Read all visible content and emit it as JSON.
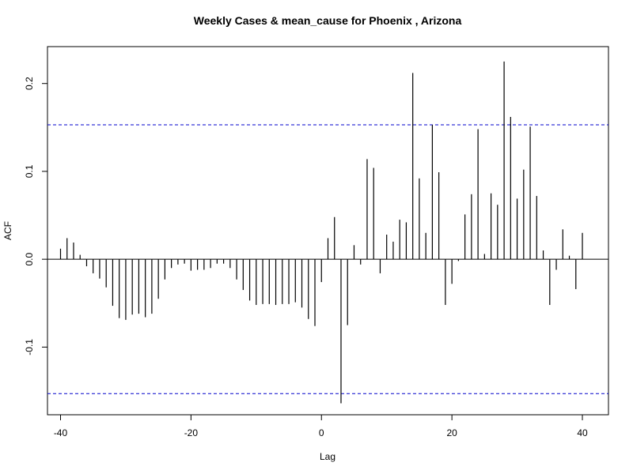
{
  "chart_data": {
    "type": "bar",
    "title": "Weekly Cases & mean_cause for Phoenix , Arizona",
    "xlabel": "Lag",
    "ylabel": "ACF",
    "xlim": [
      -42,
      44
    ],
    "ylim": [
      -0.177,
      0.242
    ],
    "x_ticks": [
      "-40",
      "-20",
      "0",
      "20",
      "40"
    ],
    "y_ticks": [
      "-0.1",
      "0.0",
      "0.1",
      "0.2"
    ],
    "confidence_limit": 0.153,
    "colors": {
      "bars": "#000000",
      "confidence_lines": "#0000cc",
      "zero_line": "#000000"
    },
    "lags": [
      -40,
      -39,
      -38,
      -37,
      -36,
      -35,
      -34,
      -33,
      -32,
      -31,
      -30,
      -29,
      -28,
      -27,
      -26,
      -25,
      -24,
      -23,
      -22,
      -21,
      -20,
      -19,
      -18,
      -17,
      -16,
      -15,
      -14,
      -13,
      -12,
      -11,
      -10,
      -9,
      -8,
      -7,
      -6,
      -5,
      -4,
      -3,
      -2,
      -1,
      0,
      1,
      2,
      3,
      4,
      5,
      6,
      7,
      8,
      9,
      10,
      11,
      12,
      13,
      14,
      15,
      16,
      17,
      18,
      19,
      20,
      21,
      22,
      23,
      24,
      25,
      26,
      27,
      28,
      29,
      30,
      31,
      32,
      33,
      34,
      35,
      36,
      37,
      38,
      39,
      40
    ],
    "values": [
      0.012,
      0.024,
      0.019,
      0.005,
      -0.008,
      -0.016,
      -0.022,
      -0.032,
      -0.053,
      -0.067,
      -0.069,
      -0.063,
      -0.062,
      -0.066,
      -0.062,
      -0.045,
      -0.023,
      -0.01,
      -0.006,
      -0.005,
      -0.013,
      -0.012,
      -0.012,
      -0.01,
      -0.005,
      -0.005,
      -0.01,
      -0.023,
      -0.035,
      -0.047,
      -0.052,
      -0.051,
      -0.051,
      -0.052,
      -0.051,
      -0.051,
      -0.049,
      -0.055,
      -0.068,
      -0.076,
      -0.026,
      0.024,
      0.048,
      -0.164,
      -0.075,
      0.016,
      -0.006,
      0.114,
      0.104,
      -0.016,
      0.028,
      0.02,
      0.045,
      0.042,
      0.212,
      0.092,
      0.03,
      0.153,
      0.099,
      -0.052,
      -0.028,
      -0.002,
      0.051,
      0.074,
      0.148,
      0.006,
      0.075,
      0.062,
      0.225,
      0.162,
      0.069,
      0.102,
      0.151,
      0.072,
      0.01,
      -0.052,
      -0.012,
      0.034,
      0.004,
      -0.034,
      0.03
    ]
  }
}
